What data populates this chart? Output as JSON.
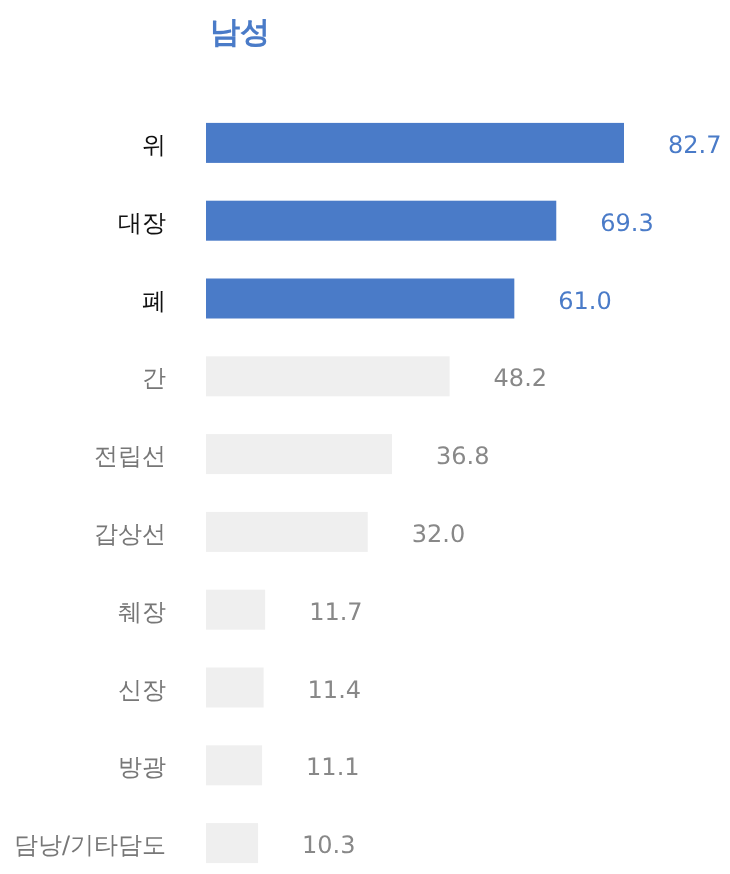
{
  "chart_data": {
    "type": "bar",
    "orientation": "horizontal",
    "title": "남성",
    "value_labels": [
      "82.7",
      "69.3",
      "61.0",
      "48.2",
      "36.8",
      "32.0",
      "11.7",
      "11.4",
      "11.1",
      "10.3"
    ],
    "categories": [
      "위",
      "대장",
      "폐",
      "간",
      "전립선",
      "갑상선",
      "췌장",
      "신장",
      "방광",
      "담낭/기타담도"
    ],
    "values": [
      82.7,
      69.3,
      61.0,
      48.2,
      36.8,
      32.0,
      11.7,
      11.4,
      11.1,
      10.3
    ],
    "colors": [
      "#4a7bc8",
      "#4a7bc8",
      "#4a7bc8",
      "#efefef",
      "#efefef",
      "#efefef",
      "#efefef",
      "#efefef",
      "#efefef",
      "#efefef"
    ]
  }
}
